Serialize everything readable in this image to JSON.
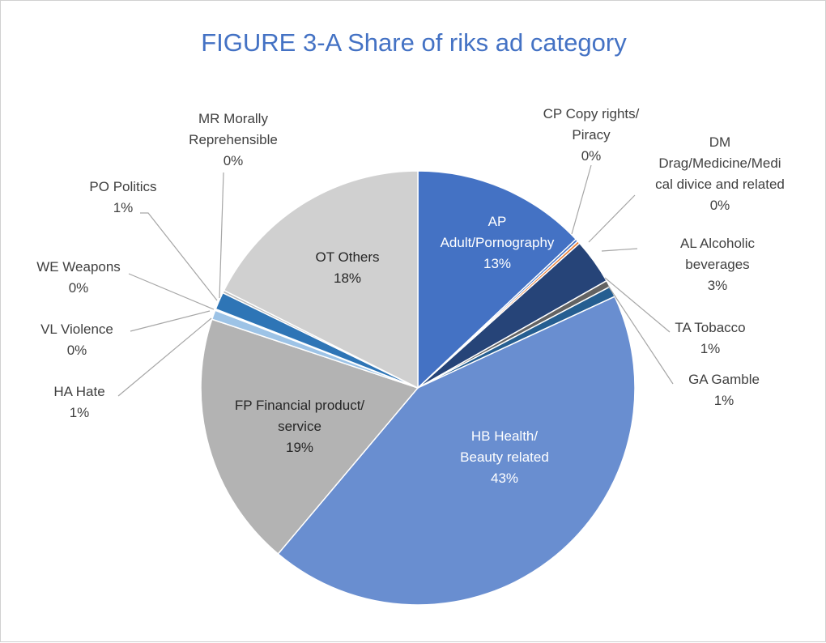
{
  "chart_data": {
    "type": "pie",
    "title": "FIGURE 3-A Share of riks ad category",
    "title_color": "#4472C4",
    "slices": [
      {
        "code": "AP",
        "lines": [
          "AP",
          "Adult/Pornography"
        ],
        "pct_label": "13%",
        "value": 13,
        "color": "#4472C4",
        "label_color": "#ffffff",
        "label_mode": "inside"
      },
      {
        "code": "CP",
        "lines": [
          "CP Copy rights/",
          "Piracy"
        ],
        "pct_label": "0%",
        "value": 0.2,
        "color": "#4472C4",
        "label_color": "#404040",
        "label_mode": "outside"
      },
      {
        "code": "DM",
        "lines": [
          "DM",
          "Drag/Medicine/Medi",
          "cal divice and related"
        ],
        "pct_label": "0%",
        "value": 0.2,
        "color": "#ED7D31",
        "label_color": "#404040",
        "label_mode": "outside"
      },
      {
        "code": "AL",
        "lines": [
          "AL Alcoholic",
          "beverages"
        ],
        "pct_label": "3%",
        "value": 3.4,
        "color": "#264478",
        "label_color": "#404040",
        "label_mode": "outside"
      },
      {
        "code": "TA",
        "lines": [
          "TA Tobacco"
        ],
        "pct_label": "1%",
        "value": 0.5,
        "color": "#636363",
        "label_color": "#404040",
        "label_mode": "outside"
      },
      {
        "code": "GA",
        "lines": [
          "GA Gamble"
        ],
        "pct_label": "1%",
        "value": 0.8,
        "color": "#255E91",
        "label_color": "#404040",
        "label_mode": "outside"
      },
      {
        "code": "HB",
        "lines": [
          "HB Health/",
          "Beauty related"
        ],
        "pct_label": "43%",
        "value": 43.1,
        "color": "#698ED0",
        "label_color": "#ffffff",
        "label_mode": "inside"
      },
      {
        "code": "FP",
        "lines": [
          "FP Financial product/",
          "service"
        ],
        "pct_label": "19%",
        "value": 19,
        "color": "#B3B3B3",
        "label_color": "#262626",
        "label_mode": "inside"
      },
      {
        "code": "HA",
        "lines": [
          "HA Hate"
        ],
        "pct_label": "1%",
        "value": 0.7,
        "color": "#9DC3E6",
        "label_color": "#404040",
        "label_mode": "outside"
      },
      {
        "code": "VL",
        "lines": [
          "VL Violence"
        ],
        "pct_label": "0%",
        "value": 0.05,
        "color": "#2E75B6",
        "label_color": "#404040",
        "label_mode": "outside"
      },
      {
        "code": "WE",
        "lines": [
          "WE Weapons"
        ],
        "pct_label": "0%",
        "value": 0.05,
        "color": "#2E75B6",
        "label_color": "#404040",
        "label_mode": "outside"
      },
      {
        "code": "PO",
        "lines": [
          "PO Politics"
        ],
        "pct_label": "1%",
        "value": 1.3,
        "color": "#2E75B6",
        "label_color": "#404040",
        "label_mode": "outside"
      },
      {
        "code": "MR",
        "lines": [
          "MR Morally",
          "Reprehensible"
        ],
        "pct_label": "0%",
        "value": 0.2,
        "color": "#BCBCBC",
        "label_color": "#404040",
        "label_mode": "outside"
      },
      {
        "code": "OT",
        "lines": [
          "OT Others"
        ],
        "pct_label": "18%",
        "value": 17.6,
        "color": "#D0D0D0",
        "label_color": "#262626",
        "label_mode": "inside"
      }
    ]
  }
}
